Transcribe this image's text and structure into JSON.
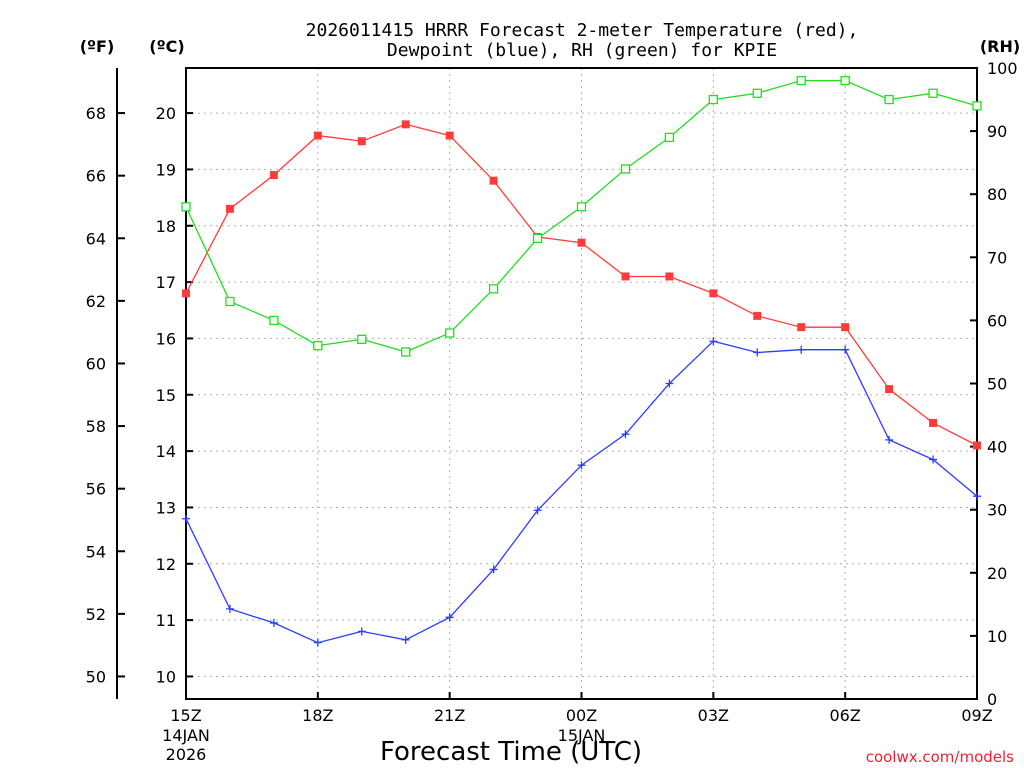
{
  "chart_data": {
    "type": "line",
    "title_line1": "2026011415 HRRR Forecast 2-meter Temperature (red),",
    "title_line2": "Dewpoint (blue), RH (green) for KPIE",
    "xlabel": "Forecast Time (UTC)",
    "unit_f": "(ºF)",
    "unit_c": "(ºC)",
    "unit_rh": "(RH)",
    "credit": "coolwx.com/models",
    "hours": [
      0,
      1,
      2,
      3,
      4,
      5,
      6,
      7,
      8,
      9,
      10,
      11,
      12,
      13,
      14,
      15,
      16,
      17,
      18
    ],
    "x_ticks": [
      {
        "h": 0,
        "label": "15Z",
        "sub1": "14JAN",
        "sub2": "2026"
      },
      {
        "h": 3,
        "label": "18Z",
        "sub1": "",
        "sub2": ""
      },
      {
        "h": 6,
        "label": "21Z",
        "sub1": "",
        "sub2": ""
      },
      {
        "h": 9,
        "label": "00Z",
        "sub1": "15JAN",
        "sub2": ""
      },
      {
        "h": 12,
        "label": "03Z",
        "sub1": "",
        "sub2": ""
      },
      {
        "h": 15,
        "label": "06Z",
        "sub1": "",
        "sub2": ""
      },
      {
        "h": 18,
        "label": "09Z",
        "sub1": "",
        "sub2": ""
      }
    ],
    "c_range": [
      9.6,
      20.8
    ],
    "c_ticks": [
      "10",
      "11",
      "12",
      "13",
      "14",
      "15",
      "16",
      "17",
      "18",
      "19",
      "20"
    ],
    "f_ticks": [
      "50",
      "52",
      "54",
      "56",
      "58",
      "60",
      "62",
      "64",
      "66",
      "68"
    ],
    "rh_range": [
      0,
      100
    ],
    "rh_ticks": [
      "0",
      "10",
      "20",
      "30",
      "40",
      "50",
      "60",
      "70",
      "80",
      "90",
      "100"
    ],
    "series": [
      {
        "name": "Temperature",
        "unit": "C",
        "color": "#ff3b3b",
        "marker": "filled-square",
        "values": [
          16.8,
          18.3,
          18.9,
          19.6,
          19.5,
          19.8,
          19.6,
          18.8,
          17.8,
          17.7,
          17.1,
          17.1,
          16.8,
          16.4,
          16.2,
          16.2,
          15.1,
          14.5,
          14.1
        ]
      },
      {
        "name": "Dewpoint",
        "unit": "C",
        "color": "#2a3dff",
        "marker": "plus",
        "values": [
          12.8,
          11.2,
          10.95,
          10.6,
          10.8,
          10.65,
          11.05,
          11.9,
          12.95,
          13.75,
          14.3,
          15.2,
          15.95,
          15.75,
          15.8,
          15.8,
          14.2,
          13.85,
          13.2
        ]
      },
      {
        "name": "RH",
        "unit": "%",
        "color": "#22dd22",
        "marker": "open-square",
        "values": [
          78,
          63,
          60,
          56,
          57,
          55,
          58,
          65,
          73,
          78,
          84,
          89,
          95,
          96,
          98,
          98,
          95,
          96,
          94
        ]
      }
    ],
    "grid": true
  }
}
